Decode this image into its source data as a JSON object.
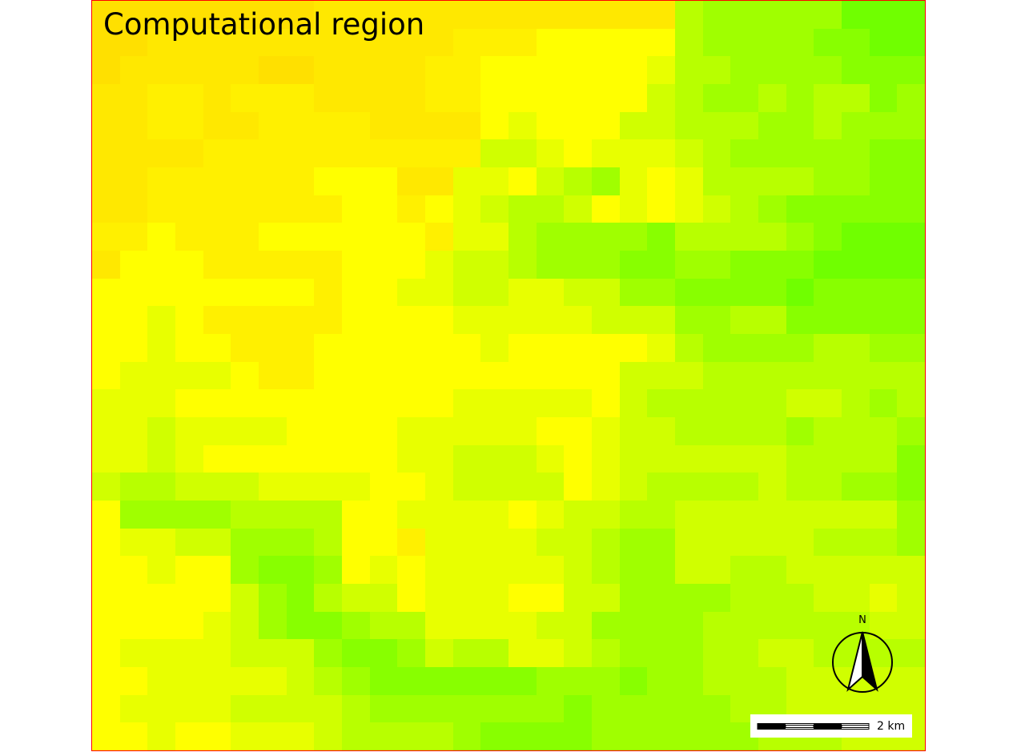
{
  "map": {
    "title": "Computational region",
    "border_color": "#ff0000",
    "north_arrow_label": "N",
    "scale_bar_label": "2 km",
    "raster": {
      "columns": 30,
      "rows": 27,
      "palette": [
        "#ffe000",
        "#ffe800",
        "#fff000",
        "#ffff00",
        "#e8ff00",
        "#d0ff00",
        "#b8ff00",
        "#a0ff00",
        "#88ff00",
        "#70ff00"
      ],
      "grid": [
        "000000001111111111111677777999",
        "001111111111122233333677778899",
        "011111001111223333334667777888",
        "112212221111223333335677676687",
        "112211222211113433355666776777",
        "111122222222225543444567777788",
        "112222223331144356743466667788",
        "112222222332345665343456788888",
        "223222333333244677778666678999",
        "133322222333455677788778889999",
        "333333332334455445577888898888",
        "334322222333344444555776688888",
        "334332223333334333334677776677",
        "344443223333333333355566666666",
        "444333333333344444356666655676",
        "445444433334444433455666676667",
        "445433333334455543455555566668",
        "566555444433455553456666566778",
        "377776666334444345566555555557",
        "344557776332444455677555556667",
        "334337887343444445677556655555",
        "333335786553444335577776665545",
        "333345788766444455777766666655",
        "344445557887566445677766556666",
        "334444456788888877787766655555",
        "344445555677777778777776655555",
        "334334445666678888777777666555"
      ]
    }
  }
}
